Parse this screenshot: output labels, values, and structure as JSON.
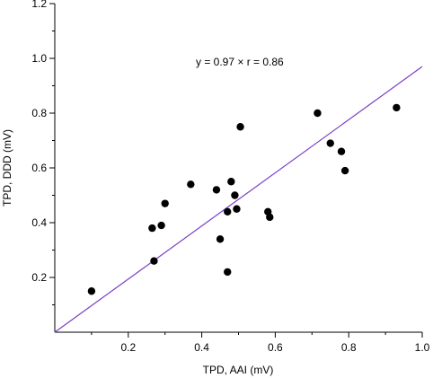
{
  "chart_data": {
    "type": "scatter",
    "title": "",
    "xlabel": "TPD, AAI (mV)",
    "ylabel": "TPD, DDD (mV)",
    "xlim": [
      0.0,
      1.0
    ],
    "ylim": [
      0.0,
      1.2
    ],
    "x_ticks": [
      0.2,
      0.4,
      0.6,
      0.8,
      1.0
    ],
    "x_tick_labels": [
      "0.2",
      "0.4",
      "0.6",
      "0.8",
      "1.0"
    ],
    "y_ticks": [
      0.2,
      0.4,
      0.6,
      0.8,
      1.0,
      1.2
    ],
    "y_tick_labels": [
      "0.2",
      "0.4",
      "0.6",
      "0.8",
      "1.0",
      "1.2"
    ],
    "grid": false,
    "annotation": "y = 0.97 ×   r = 0.86",
    "regression": {
      "slope": 0.97,
      "intercept": 0.0,
      "r": 0.86,
      "color": "#7b3fc8"
    },
    "point_color": "#000000",
    "series": [
      {
        "points": [
          {
            "x": 0.1,
            "y": 0.15
          },
          {
            "x": 0.265,
            "y": 0.38
          },
          {
            "x": 0.27,
            "y": 0.26
          },
          {
            "x": 0.29,
            "y": 0.39
          },
          {
            "x": 0.3,
            "y": 0.47
          },
          {
            "x": 0.37,
            "y": 0.54
          },
          {
            "x": 0.44,
            "y": 0.52
          },
          {
            "x": 0.45,
            "y": 0.34
          },
          {
            "x": 0.47,
            "y": 0.44
          },
          {
            "x": 0.47,
            "y": 0.22
          },
          {
            "x": 0.48,
            "y": 0.55
          },
          {
            "x": 0.49,
            "y": 0.5
          },
          {
            "x": 0.495,
            "y": 0.45
          },
          {
            "x": 0.505,
            "y": 0.75
          },
          {
            "x": 0.58,
            "y": 0.44
          },
          {
            "x": 0.585,
            "y": 0.42
          },
          {
            "x": 0.715,
            "y": 0.8
          },
          {
            "x": 0.75,
            "y": 0.69
          },
          {
            "x": 0.78,
            "y": 0.66
          },
          {
            "x": 0.79,
            "y": 0.59
          },
          {
            "x": 0.93,
            "y": 0.82
          }
        ]
      }
    ]
  }
}
